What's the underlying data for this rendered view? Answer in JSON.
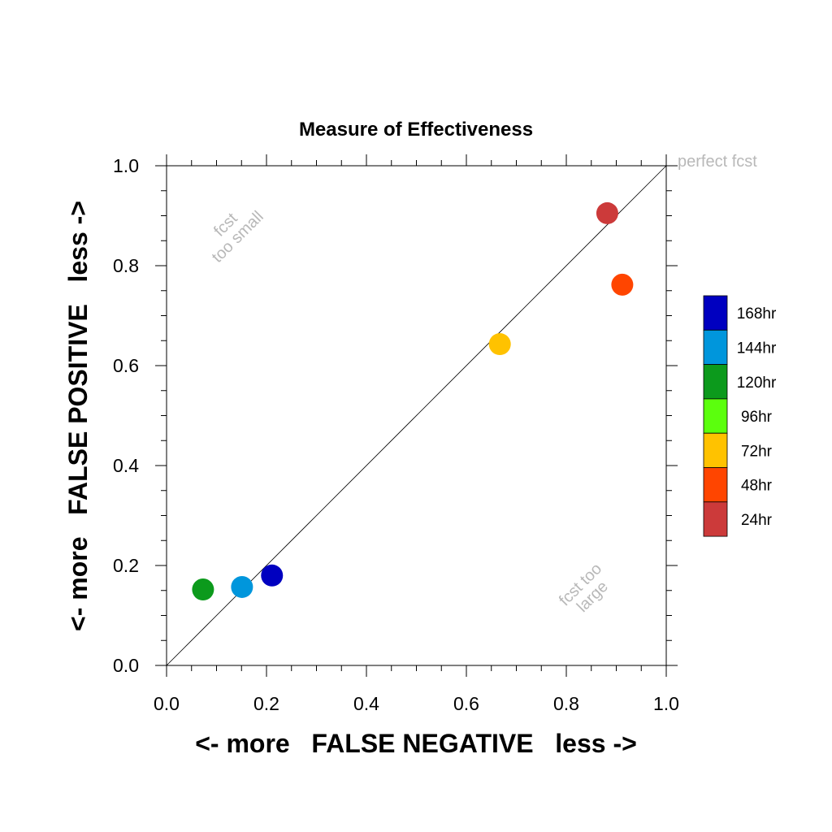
{
  "chart_data": {
    "type": "scatter",
    "title": "Measure of Effectiveness",
    "xlabel": "<- more   FALSE NEGATIVE   less ->",
    "ylabel": "<- more   FALSE POSITIVE   less ->",
    "xlim": [
      0.0,
      1.0
    ],
    "ylim": [
      0.0,
      1.0
    ],
    "xticks": [
      "0.0",
      "0.2",
      "0.4",
      "0.6",
      "0.8",
      "1.0"
    ],
    "yticks": [
      "0.0",
      "0.2",
      "0.4",
      "0.6",
      "0.8",
      "1.0"
    ],
    "grid": false,
    "reference_line": {
      "from": [
        0,
        0
      ],
      "to": [
        1,
        1
      ],
      "label": "perfect fcst"
    },
    "annotations": [
      {
        "lines": [
          "fcst",
          "too small"
        ],
        "x": 0.13,
        "y": 0.87,
        "rotation": -45
      },
      {
        "lines": [
          "fcst too",
          "large"
        ],
        "x": 0.84,
        "y": 0.15,
        "rotation": -45
      }
    ],
    "series": [
      {
        "name": "24hr",
        "color": "#cc3a3a",
        "x": 0.882,
        "y": 0.905
      },
      {
        "name": "48hr",
        "color": "#ff4500",
        "x": 0.912,
        "y": 0.762
      },
      {
        "name": "72hr",
        "color": "#ffc200",
        "x": 0.667,
        "y": 0.643
      },
      {
        "name": "96hr",
        "color": "#5bff0d",
        "x": null,
        "y": null
      },
      {
        "name": "120hr",
        "color": "#0c9a1c",
        "x": 0.073,
        "y": 0.152
      },
      {
        "name": "144hr",
        "color": "#0096dc",
        "x": 0.151,
        "y": 0.157
      },
      {
        "name": "168hr",
        "color": "#0000c0",
        "x": 0.211,
        "y": 0.18
      }
    ],
    "legend": {
      "placement": "right",
      "order": [
        "168hr",
        "144hr",
        "120hr",
        "96hr",
        "72hr",
        "48hr",
        "24hr"
      ]
    }
  }
}
